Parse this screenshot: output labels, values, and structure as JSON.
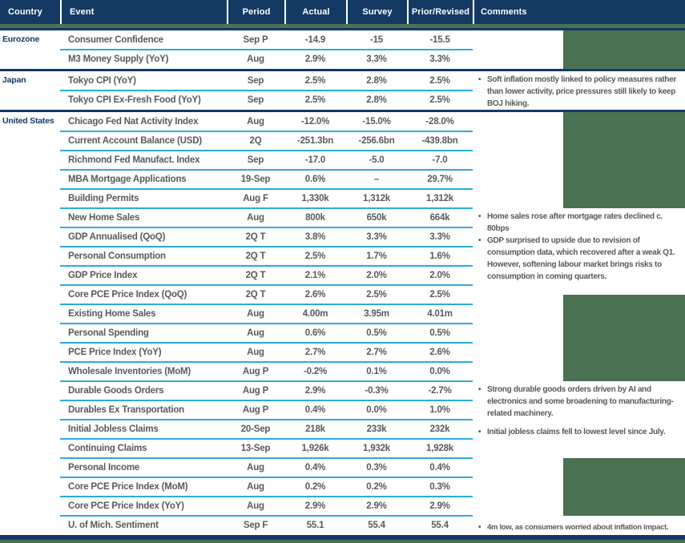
{
  "header": {
    "columns": [
      "Country",
      "Event",
      "Period",
      "Actual",
      "Survey",
      "Prior/Revised",
      "Comments"
    ]
  },
  "colors": {
    "navy": "#143A64",
    "cyan_row_divider": "#29ABE2",
    "page_green": "#4A7152",
    "text_gray": "#58595B",
    "header_text": "#FFFFFF"
  },
  "sections": [
    {
      "country": "Eurozone",
      "rows": [
        {
          "event": "Consumer Confidence",
          "period": "Sep P",
          "actual": "-14.9",
          "survey": "-15",
          "prior": "-15.5"
        },
        {
          "event": "M3 Money Supply (YoY)",
          "period": "Aug",
          "actual": "2.9%",
          "survey": "3.3%",
          "prior": "3.3%"
        }
      ]
    },
    {
      "country": "Japan",
      "rows": [
        {
          "event": "Tokyo CPI (YoY)",
          "period": "Sep",
          "actual": "2.5%",
          "survey": "2.8%",
          "prior": "2.5%"
        },
        {
          "event": "Tokyo CPI Ex-Fresh Food (YoY)",
          "period": "Sep",
          "actual": "2.5%",
          "survey": "2.8%",
          "prior": "2.5%"
        }
      ]
    },
    {
      "country": "United States",
      "rows": [
        {
          "event": "Chicago Fed Nat Activity Index",
          "period": "Aug",
          "actual": "-12.0%",
          "survey": "-15.0%",
          "prior": "-28.0%"
        },
        {
          "event": "Current Account Balance (USD)",
          "period": "2Q",
          "actual": "-251.3bn",
          "survey": "-256.6bn",
          "prior": "-439.8bn"
        },
        {
          "event": "Richmond Fed Manufact. Index",
          "period": "Sep",
          "actual": "-17.0",
          "survey": "-5.0",
          "prior": "-7.0"
        },
        {
          "event": "MBA Mortgage Applications",
          "period": "19-Sep",
          "actual": "0.6%",
          "survey": "–",
          "prior": "29.7%"
        },
        {
          "event": "Building Permits",
          "period": "Aug F",
          "actual": "1,330k",
          "survey": "1,312k",
          "prior": "1,312k"
        },
        {
          "event": "New Home Sales",
          "period": "Aug",
          "actual": "800k",
          "survey": "650k",
          "prior": "664k"
        },
        {
          "event": "GDP Annualised (QoQ)",
          "period": "2Q T",
          "actual": "3.8%",
          "survey": "3.3%",
          "prior": "3.3%"
        },
        {
          "event": "Personal Consumption",
          "period": "2Q T",
          "actual": "2.5%",
          "survey": "1.7%",
          "prior": "1.6%"
        },
        {
          "event": "GDP Price Index",
          "period": "2Q T",
          "actual": "2.1%",
          "survey": "2.0%",
          "prior": "2.0%"
        },
        {
          "event": "Core PCE Price Index (QoQ)",
          "period": "2Q T",
          "actual": "2.6%",
          "survey": "2.5%",
          "prior": "2.5%"
        },
        {
          "event": "Existing Home Sales",
          "period": "Aug",
          "actual": "4.00m",
          "survey": "3.95m",
          "prior": "4.01m"
        },
        {
          "event": "Personal Spending",
          "period": "Aug",
          "actual": "0.6%",
          "survey": "0.5%",
          "prior": "0.5%"
        },
        {
          "event": "PCE Price Index (YoY)",
          "period": "Aug",
          "actual": "2.7%",
          "survey": "2.7%",
          "prior": "2.6%"
        },
        {
          "event": "Wholesale Inventories (MoM)",
          "period": "Aug P",
          "actual": "-0.2%",
          "survey": "0.1%",
          "prior": "0.0%"
        },
        {
          "event": "Durable Goods Orders",
          "period": "Aug P",
          "actual": "2.9%",
          "survey": "-0.3%",
          "prior": "-2.7%"
        },
        {
          "event": "Durables Ex Transportation",
          "period": "Aug P",
          "actual": "0.4%",
          "survey": "0.0%",
          "prior": "1.0%"
        },
        {
          "event": "Initial Jobless Claims",
          "period": "20-Sep",
          "actual": "218k",
          "survey": "233k",
          "prior": "232k"
        },
        {
          "event": "Continuing Claims",
          "period": "13-Sep",
          "actual": "1,926k",
          "survey": "1,932k",
          "prior": "1,928k"
        },
        {
          "event": "Personal Income",
          "period": "Aug",
          "actual": "0.4%",
          "survey": "0.3%",
          "prior": "0.4%"
        },
        {
          "event": "Core PCE Price Index (MoM)",
          "period": "Aug",
          "actual": "0.2%",
          "survey": "0.2%",
          "prior": "0.3%"
        },
        {
          "event": "Core PCE Price Index (YoY)",
          "period": "Aug",
          "actual": "2.9%",
          "survey": "2.9%",
          "prior": "2.9%"
        },
        {
          "event": "U. of Mich. Sentiment",
          "period": "Sep F",
          "actual": "55.1",
          "survey": "55.4",
          "prior": "55.4"
        }
      ]
    }
  ],
  "comments": [
    {
      "text": "Soft inflation mostly linked to policy measures rather than lower activity, price pressures still likely to keep BOJ hiking."
    },
    {
      "text": "Home sales rose after mortgage rates declined c. 80bps"
    },
    {
      "text": "GDP surprised to upside due to revision of consumption data, which recovered after a weak Q1. However, softening labour market brings risks to consumption in coming quarters."
    },
    {
      "text": "Strong durable goods orders driven by AI and electronics and some broadening to manufacturing-related machinery."
    },
    {
      "text": "Initial jobless claims fell to lowest level since July."
    },
    {
      "text": "4m low, as consumers worried about inflation impact."
    }
  ]
}
